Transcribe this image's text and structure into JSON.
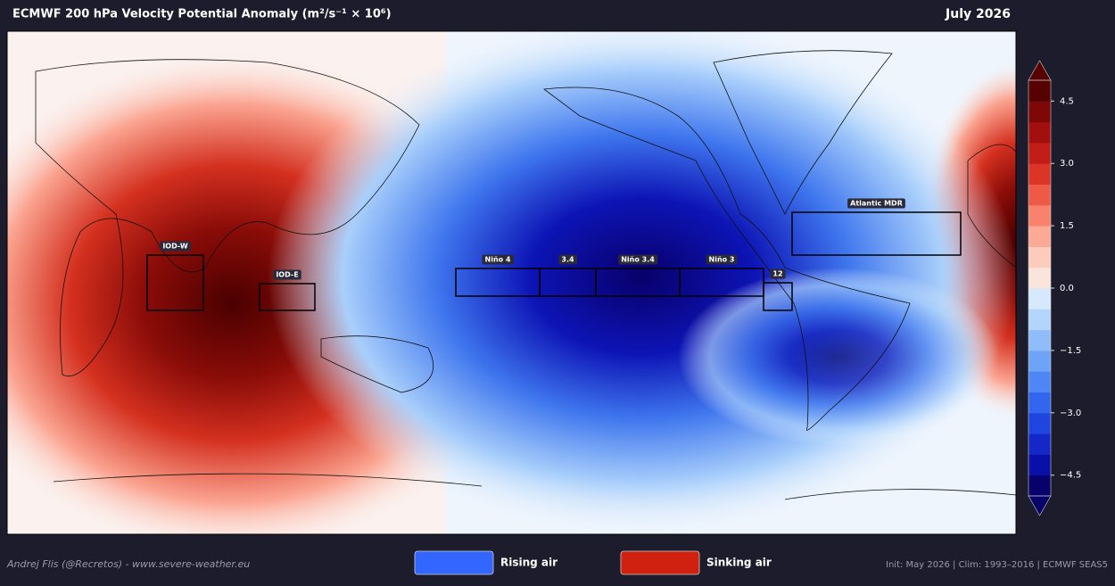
{
  "header": {
    "title": "ECMWF 200 hPa Velocity Potential Anomaly  (m²/s⁻¹ × 10⁶)",
    "date": "July 2026"
  },
  "map": {
    "regions": [
      {
        "label": "IOD-W"
      },
      {
        "label": "IOD-E"
      },
      {
        "label": "Niño 4"
      },
      {
        "label": "3.4"
      },
      {
        "label": "Niño 3.4"
      },
      {
        "label": "Niño 3"
      },
      {
        "label": "12"
      },
      {
        "label": "Atlantic MDR"
      }
    ]
  },
  "colorbar": {
    "lim": [
      -5,
      5
    ],
    "ticks": [
      {
        "value": 4.5,
        "label": "4.5"
      },
      {
        "value": 3,
        "label": "3.0"
      },
      {
        "value": 1.5,
        "label": "1.5"
      },
      {
        "value": 0,
        "label": "0.0"
      },
      {
        "value": -1.5,
        "label": "−1.5"
      },
      {
        "value": -3,
        "label": "−3.0"
      },
      {
        "value": -4.5,
        "label": "−4.5"
      }
    ],
    "colors": [
      "#08006b",
      "#0a0fa8",
      "#1428c8",
      "#1f45e0",
      "#3366ee",
      "#4f86f5",
      "#6ea3f8",
      "#90bdfa",
      "#b3d4fb",
      "#d6e8fc",
      "#fbe4dc",
      "#fdccbc",
      "#fca996",
      "#f8826c",
      "#ef5a46",
      "#dc3528",
      "#c21e17",
      "#a1100e",
      "#7e0806",
      "#560202"
    ]
  },
  "legend": [
    {
      "label": "Rising air",
      "color": "#3366ff"
    },
    {
      "label": "Sinking air",
      "color": "#d02010"
    }
  ],
  "footer": {
    "credit": "Andrej Flis (@Recretos) - www.severe-weather.eu",
    "info": "Init: May 2026  |  Clim: 1993–2016  |  ECMWF SEAS5"
  }
}
